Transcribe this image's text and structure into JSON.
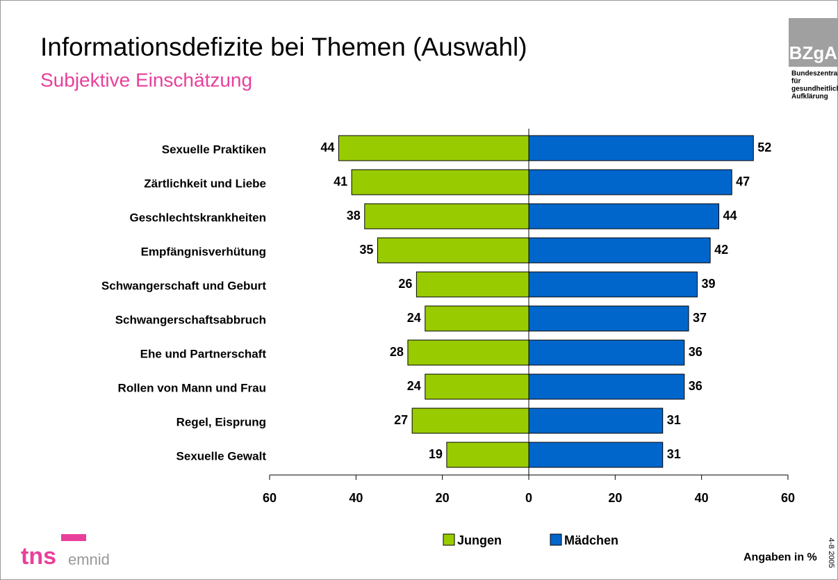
{
  "chart_data": {
    "type": "butterfly",
    "title": "Informationsdefizite bei Themen (Auswahl)",
    "subtitle": "Subjektive Einschätzung",
    "categories": [
      "Sexuelle Praktiken",
      "Zärtlichkeit und Liebe",
      "Geschlechtskrankheiten",
      "Empfängnisverhütung",
      "Schwangerschaft und Geburt",
      "Schwangerschaftsabbruch",
      "Ehe und Partnerschaft",
      "Rollen von Mann und Frau",
      "Regel, Eisprung",
      "Sexuelle Gewalt"
    ],
    "series": [
      {
        "name": "Jungen",
        "color": "#99cc00",
        "side": "left",
        "values": [
          44,
          41,
          38,
          35,
          26,
          24,
          28,
          24,
          27,
          19
        ]
      },
      {
        "name": "Mädchen",
        "color": "#0066cc",
        "side": "right",
        "values": [
          52,
          47,
          44,
          42,
          39,
          37,
          36,
          36,
          31,
          31
        ]
      }
    ],
    "xlim": [
      -60,
      60
    ],
    "xticks": [
      {
        "value": -60,
        "label": "60"
      },
      {
        "value": -40,
        "label": "40"
      },
      {
        "value": -20,
        "label": "20"
      },
      0,
      20,
      40,
      60
    ],
    "note": "Angaben in %",
    "date": "4-8 2005",
    "logo": {
      "name": "BZgA",
      "lines": [
        "Bundeszentrale",
        "für",
        "gesundheitliche",
        "Aufklärung"
      ]
    },
    "footer_logo": {
      "main": "tns",
      "sub": "emnid"
    }
  }
}
